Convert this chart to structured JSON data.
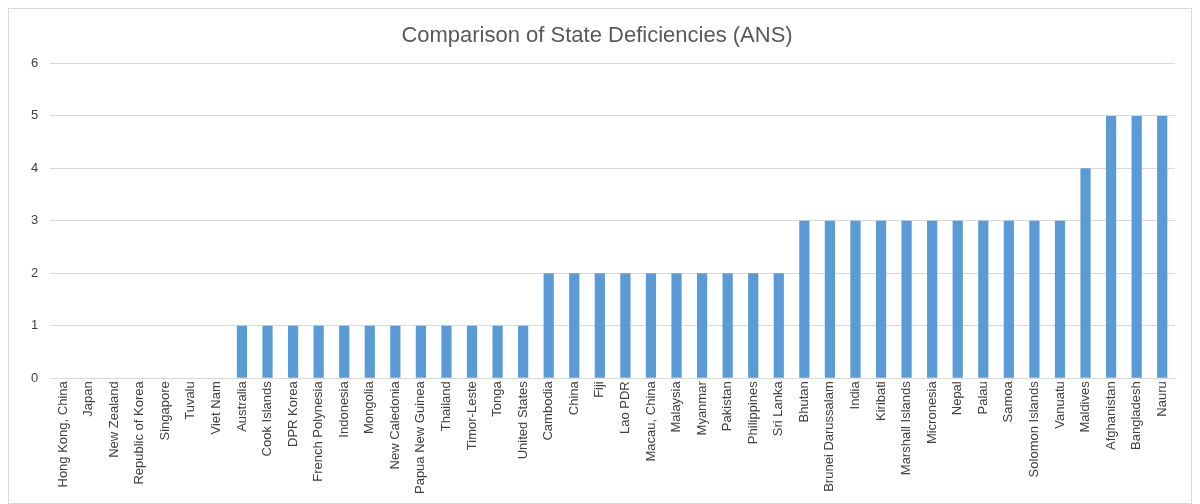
{
  "chart_data": {
    "type": "bar",
    "title": "Comparison of State Deficiencies (ANS)",
    "categories": [
      "Hong Kong, China",
      "Japan",
      "New Zealand",
      "Republic of Korea",
      "Singapore",
      "Tuvalu",
      "Viet Nam",
      "Australia",
      "Cook Islands",
      "DPR Korea",
      "French Polynesia",
      "Indonesia",
      "Mongolia",
      "New Caledonia",
      "Papua New Guinea",
      "Thailand",
      "Timor-Leste",
      "Tonga",
      "United States",
      "Cambodia",
      "China",
      "Fiji",
      "Lao PDR",
      "Macau, China",
      "Malaysia",
      "Myanmar",
      "Pakistan",
      "Philippines",
      "Sri Lanka",
      "Bhutan",
      "Brunei Darussalam",
      "India",
      "Kiribati",
      "Marshall Islands",
      "Micronesia",
      "Nepal",
      "Palau",
      "Samoa",
      "Solomon Islands",
      "Vanuatu",
      "Maldives",
      "Afghanistan",
      "Bangladesh",
      "Nauru"
    ],
    "values": [
      0,
      0,
      0,
      0,
      0,
      0,
      0,
      1,
      1,
      1,
      1,
      1,
      1,
      1,
      1,
      1,
      1,
      1,
      1,
      2,
      2,
      2,
      2,
      2,
      2,
      2,
      2,
      2,
      2,
      3,
      3,
      3,
      3,
      3,
      3,
      3,
      3,
      3,
      3,
      3,
      4,
      5,
      5,
      5
    ],
    "color": "#5b9bd5",
    "ylim": [
      0,
      6
    ],
    "yticks": [
      0,
      1,
      2,
      3,
      4,
      5,
      6
    ],
    "grid": "y",
    "legend": false
  }
}
